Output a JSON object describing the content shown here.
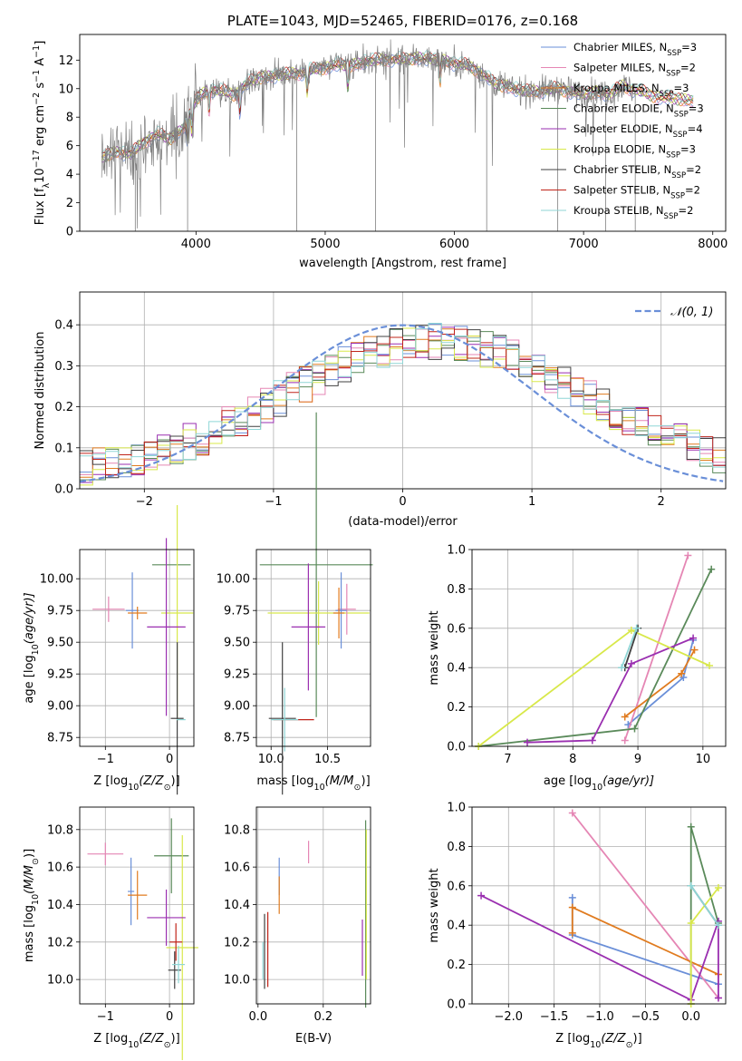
{
  "colors": {
    "Chabrier MILES": "#6a8fd8",
    "Salpeter MILES": "#e586b4",
    "Kroupa MILES": "#e07b1f",
    "Chabrier ELODIE": "#5a8a5a",
    "Salpeter ELODIE": "#9a2fb0",
    "Kroupa ELODIE": "#d8e84a",
    "Chabrier STELIB": "#404040",
    "Salpeter STELIB": "#c0241a",
    "Kroupa STELIB": "#8fd6d6",
    "grid": "#b0b0b0",
    "data": "#808080"
  },
  "chart_data": [
    {
      "id": "spectrum",
      "type": "line",
      "title": "PLATE=1043, MJD=52465, FIBERID=0176, z=0.168",
      "xlabel": "wavelength [Angstrom, rest frame]",
      "ylabel_main": "Flux [f",
      "ylabel_sub": "λ",
      "ylabel_rest": "10",
      "ylabel_exp": "−17",
      "ylabel_units": " erg cm",
      "ylabel_units_exp1": "−2",
      "ylabel_units2": " s",
      "ylabel_units_exp2": "−1",
      "ylabel_units3": " A",
      "ylabel_units_exp3": "−1",
      "ylabel_close": "]",
      "xlim": [
        3100,
        8100
      ],
      "ylim": [
        0,
        13.8
      ],
      "xticks": [
        4000,
        5000,
        6000,
        7000,
        8000
      ],
      "yticks": [
        0,
        2,
        4,
        6,
        8,
        10,
        12
      ],
      "legend_position": "upper right",
      "legend": [
        {
          "name": "Chabrier MILES",
          "label": "Chabrier MILES, N",
          "sub": "SSP",
          "tail": "=3"
        },
        {
          "name": "Salpeter MILES",
          "label": "Salpeter MILES, N",
          "sub": "SSP",
          "tail": "=2"
        },
        {
          "name": "Kroupa MILES",
          "label": "Kroupa MILES, N",
          "sub": "SSP",
          "tail": "=3"
        },
        {
          "name": "Chabrier ELODIE",
          "label": "Chabrier ELODIE, N",
          "sub": "SSP",
          "tail": "=3"
        },
        {
          "name": "Salpeter ELODIE",
          "label": "Salpeter ELODIE, N",
          "sub": "SSP",
          "tail": "=4"
        },
        {
          "name": "Kroupa ELODIE",
          "label": "Kroupa ELODIE, N",
          "sub": "SSP",
          "tail": "=3"
        },
        {
          "name": "Chabrier STELIB",
          "label": "Chabrier STELIB, N",
          "sub": "SSP",
          "tail": "=2"
        },
        {
          "name": "Salpeter STELIB",
          "label": "Salpeter STELIB, N",
          "sub": "SSP",
          "tail": "=2"
        },
        {
          "name": "Kroupa STELIB",
          "label": "Kroupa STELIB, N",
          "sub": "SSP",
          "tail": "=2"
        }
      ],
      "continuum": [
        [
          3270,
          5.2
        ],
        [
          3400,
          5.6
        ],
        [
          3500,
          5.4
        ],
        [
          3600,
          6.3
        ],
        [
          3700,
          6.8
        ],
        [
          3800,
          6.5
        ],
        [
          3900,
          7.2
        ],
        [
          3960,
          8.4
        ],
        [
          4000,
          9.2
        ],
        [
          4100,
          10.0
        ],
        [
          4200,
          9.8
        ],
        [
          4300,
          9.6
        ],
        [
          4400,
          10.4
        ],
        [
          4500,
          10.8
        ],
        [
          4600,
          10.9
        ],
        [
          4700,
          11.0
        ],
        [
          4800,
          11.1
        ],
        [
          4900,
          11.3
        ],
        [
          5000,
          11.5
        ],
        [
          5100,
          11.7
        ],
        [
          5200,
          11.6
        ],
        [
          5300,
          11.9
        ],
        [
          5400,
          12.0
        ],
        [
          5500,
          12.1
        ],
        [
          5600,
          12.0
        ],
        [
          5700,
          12.2
        ],
        [
          5800,
          12.1
        ],
        [
          5900,
          12.0
        ],
        [
          6000,
          11.8
        ],
        [
          6100,
          11.6
        ],
        [
          6200,
          11.2
        ],
        [
          6300,
          10.4
        ],
        [
          6400,
          10.2
        ],
        [
          6500,
          9.9
        ],
        [
          6600,
          9.8
        ],
        [
          6700,
          9.9
        ],
        [
          6800,
          10.0
        ],
        [
          6900,
          9.8
        ],
        [
          7000,
          9.6
        ],
        [
          7100,
          9.8
        ],
        [
          7200,
          9.6
        ],
        [
          7300,
          10.2
        ],
        [
          7400,
          9.9
        ],
        [
          7500,
          9.6
        ],
        [
          7600,
          9.4
        ],
        [
          7700,
          9.3
        ],
        [
          7800,
          9.2
        ],
        [
          7850,
          9.2
        ]
      ],
      "data_color": "#808080",
      "data_end": 7400,
      "dropouts": [
        3530,
        3935,
        4780,
        5390,
        6250,
        6800,
        7170,
        7400
      ],
      "lines_absorption": [
        3933,
        3968,
        4101,
        4340,
        4861,
        5175,
        5890
      ]
    },
    {
      "id": "residuals",
      "type": "histogram",
      "xlabel": "(data-model)/error",
      "ylabel": "Normed distribution",
      "xlim": [
        -2.5,
        2.5
      ],
      "ylim": [
        0,
        0.48
      ],
      "xticks": [
        -2,
        -1,
        0,
        1,
        2
      ],
      "yticks": [
        0.0,
        0.1,
        0.2,
        0.3,
        0.4
      ],
      "normal_label_main": "𝒩(0, 1)",
      "normal_color": "#6a8fd8",
      "legend_position": "upper right"
    },
    {
      "id": "age_vs_Z",
      "type": "scatter",
      "xlabel_main": "Z [log",
      "xlabel_sub": "10",
      "xlabel_rest": "(Z/Z",
      "xlabel_odot": "⊙",
      "xlabel_close": ")]",
      "ylabel_main": "age  [log",
      "ylabel_sub": "10",
      "ylabel_rest": "(age/yr)]",
      "xlim": [
        -1.4,
        0.38
      ],
      "ylim": [
        8.68,
        10.23
      ],
      "xticks": [
        -1,
        0
      ],
      "yticks": [
        8.75,
        9.0,
        9.25,
        9.5,
        9.75,
        10.0
      ],
      "points": [
        {
          "series": "Salpeter MILES",
          "x": -0.95,
          "y": 9.76,
          "xerr": 0.25,
          "yerr": 0.1
        },
        {
          "series": "Chabrier MILES",
          "x": -0.58,
          "y": 9.75,
          "xerr": 0.1,
          "yerr": 0.3
        },
        {
          "series": "Kroupa MILES",
          "x": -0.5,
          "y": 9.73,
          "xerr": 0.15,
          "yerr": 0.05
        },
        {
          "series": "Chabrier ELODIE",
          "x": 0.03,
          "y": 10.11,
          "xerr": 0.3,
          "yerr": 0.0
        },
        {
          "series": "Kroupa ELODIE",
          "x": 0.12,
          "y": 9.73,
          "xerr": 0.25,
          "yerr": 0.85
        },
        {
          "series": "Salpeter ELODIE",
          "x": -0.05,
          "y": 9.62,
          "xerr": 0.3,
          "yerr": 0.7
        },
        {
          "series": "Chabrier STELIB",
          "x": 0.12,
          "y": 8.9,
          "xerr": 0.1,
          "yerr": 0.6
        },
        {
          "series": "Salpeter STELIB",
          "x": 0.0,
          "y": 8.89,
          "xerr": 0.0,
          "yerr": 0.0
        },
        {
          "series": "Kroupa STELIB",
          "x": 0.18,
          "y": 8.89,
          "xerr": 0.07,
          "yerr": 0.0
        }
      ]
    },
    {
      "id": "age_vs_mass",
      "type": "scatter",
      "xlabel_main": "mass [log",
      "xlabel_sub": "10",
      "xlabel_rest": "(M/M",
      "xlabel_odot": "⊙",
      "xlabel_close": ")]",
      "xlim": [
        9.87,
        10.88
      ],
      "ylim": [
        8.68,
        10.23
      ],
      "xticks": [
        10.0,
        10.5
      ],
      "yticks": [
        8.75,
        9.0,
        9.25,
        9.5,
        9.75,
        10.0
      ],
      "points": [
        {
          "series": "Chabrier ELODIE",
          "x": 10.4,
          "y": 10.11,
          "xerr": 0.5,
          "yerr": 1.2
        },
        {
          "series": "Kroupa ELODIE",
          "x": 10.42,
          "y": 9.73,
          "xerr": 0.45,
          "yerr": 0.25
        },
        {
          "series": "Salpeter ELODIE",
          "x": 10.33,
          "y": 9.62,
          "xerr": 0.15,
          "yerr": 0.5
        },
        {
          "series": "Salpeter MILES",
          "x": 10.67,
          "y": 9.76,
          "xerr": 0.08,
          "yerr": 0.2
        },
        {
          "series": "Chabrier MILES",
          "x": 10.62,
          "y": 9.75,
          "xerr": 0.05,
          "yerr": 0.3
        },
        {
          "series": "Kroupa MILES",
          "x": 10.6,
          "y": 9.73,
          "xerr": 0.05,
          "yerr": 0.2
        },
        {
          "series": "Chabrier STELIB",
          "x": 10.1,
          "y": 8.9,
          "xerr": 0.12,
          "yerr": 0.6
        },
        {
          "series": "Salpeter STELIB",
          "x": 10.2,
          "y": 8.89,
          "xerr": 0.18,
          "yerr": 0.0
        },
        {
          "series": "Kroupa STELIB",
          "x": 10.12,
          "y": 8.89,
          "xerr": 0.12,
          "yerr": 0.25
        }
      ]
    },
    {
      "id": "weight_vs_age",
      "type": "line",
      "xlabel_main": "age  [log",
      "xlabel_sub": "10",
      "xlabel_rest": "(age/yr)]",
      "ylabel": "mass weight",
      "xlim": [
        6.45,
        10.35
      ],
      "ylim": [
        0,
        1.0
      ],
      "xticks": [
        7,
        8,
        9,
        10
      ],
      "yticks": [
        0.0,
        0.2,
        0.4,
        0.6,
        0.8,
        1.0
      ],
      "series": [
        {
          "name": "Chabrier MILES",
          "x": [
            8.85,
            9.7,
            9.85
          ],
          "y": [
            0.11,
            0.35,
            0.54
          ]
        },
        {
          "name": "Salpeter MILES",
          "x": [
            8.8,
            9.77
          ],
          "y": [
            0.03,
            0.97
          ]
        },
        {
          "name": "Kroupa MILES",
          "x": [
            8.8,
            9.67,
            9.87
          ],
          "y": [
            0.15,
            0.37,
            0.49
          ]
        },
        {
          "name": "Chabrier ELODIE",
          "x": [
            6.55,
            8.95,
            10.13
          ],
          "y": [
            0.0,
            0.09,
            0.9
          ]
        },
        {
          "name": "Salpeter ELODIE",
          "x": [
            7.3,
            8.3,
            8.9,
            9.85
          ],
          "y": [
            0.02,
            0.03,
            0.42,
            0.55
          ]
        },
        {
          "name": "Kroupa ELODIE",
          "x": [
            6.55,
            8.9,
            10.1
          ],
          "y": [
            0.0,
            0.59,
            0.41
          ]
        },
        {
          "name": "Chabrier STELIB",
          "x": [
            8.8,
            9.0
          ],
          "y": [
            0.4,
            0.6
          ]
        },
        {
          "name": "Kroupa STELIB",
          "x": [
            8.75,
            8.98
          ],
          "y": [
            0.4,
            0.6
          ]
        }
      ]
    },
    {
      "id": "mass_vs_Z",
      "type": "scatter",
      "xlabel_main": "Z [log",
      "xlabel_sub": "10",
      "xlabel_rest": "(Z/Z",
      "xlabel_odot": "⊙",
      "xlabel_close": ")]",
      "ylabel_main": "mass [log",
      "ylabel_sub": "10",
      "ylabel_rest": "(M/M",
      "ylabel_odot": "⊙",
      "ylabel_close": ")]",
      "xlim": [
        -1.4,
        0.38
      ],
      "ylim": [
        9.87,
        10.92
      ],
      "xticks": [
        -1,
        0
      ],
      "yticks": [
        10.0,
        10.2,
        10.4,
        10.6,
        10.8
      ],
      "points": [
        {
          "series": "Salpeter MILES",
          "x": -1.0,
          "y": 10.67,
          "xerr": 0.28,
          "yerr": 0.06
        },
        {
          "series": "Chabrier MILES",
          "x": -0.6,
          "y": 10.47,
          "xerr": 0.05,
          "yerr": 0.18
        },
        {
          "series": "Kroupa MILES",
          "x": -0.5,
          "y": 10.45,
          "xerr": 0.15,
          "yerr": 0.13
        },
        {
          "series": "Chabrier ELODIE",
          "x": 0.03,
          "y": 10.66,
          "xerr": 0.27,
          "yerr": 0.2
        },
        {
          "series": "Kroupa ELODIE",
          "x": 0.2,
          "y": 10.17,
          "xerr": 0.25,
          "yerr": 0.6
        },
        {
          "series": "Salpeter ELODIE",
          "x": -0.05,
          "y": 10.33,
          "xerr": 0.3,
          "yerr": 0.15
        },
        {
          "series": "Chabrier STELIB",
          "x": 0.08,
          "y": 10.05,
          "xerr": 0.1,
          "yerr": 0.1
        },
        {
          "series": "Salpeter STELIB",
          "x": 0.1,
          "y": 10.2,
          "xerr": 0.1,
          "yerr": 0.1
        },
        {
          "series": "Kroupa STELIB",
          "x": 0.14,
          "y": 10.08,
          "xerr": 0.1,
          "yerr": 0.1
        }
      ]
    },
    {
      "id": "mass_vs_ebv",
      "type": "scatter",
      "xlabel": "E(B-V)",
      "xlim": [
        -0.005,
        0.345
      ],
      "ylim": [
        9.87,
        10.92
      ],
      "xticks": [
        0.0,
        0.2
      ],
      "yticks": [
        10.0,
        10.2,
        10.4,
        10.6,
        10.8
      ],
      "points": [
        {
          "series": "Chabrier STELIB",
          "x": 0.02,
          "y": 10.15,
          "xerr": 0,
          "yerr": 0.2
        },
        {
          "series": "Salpeter STELIB",
          "x": 0.03,
          "y": 10.16,
          "xerr": 0,
          "yerr": 0.2
        },
        {
          "series": "Kroupa STELIB",
          "x": 0.015,
          "y": 10.1,
          "xerr": 0,
          "yerr": 0.1
        },
        {
          "series": "Chabrier MILES",
          "x": 0.065,
          "y": 10.55,
          "xerr": 0,
          "yerr": 0.1
        },
        {
          "series": "Kroupa MILES",
          "x": 0.065,
          "y": 10.45,
          "xerr": 0,
          "yerr": 0.1
        },
        {
          "series": "Salpeter MILES",
          "x": 0.155,
          "y": 10.68,
          "xerr": 0,
          "yerr": 0.06
        },
        {
          "series": "Salpeter ELODIE",
          "x": 0.32,
          "y": 10.17,
          "xerr": 0,
          "yerr": 0.15
        },
        {
          "series": "Chabrier ELODIE",
          "x": 0.33,
          "y": 10.35,
          "xerr": 0,
          "yerr": 0.5
        },
        {
          "series": "Kroupa ELODIE",
          "x": 0.332,
          "y": 10.4,
          "xerr": 0,
          "yerr": 0.4
        }
      ]
    },
    {
      "id": "weight_vs_Z",
      "type": "line",
      "xlabel_main": "Z [log",
      "xlabel_sub": "10",
      "xlabel_rest": "(Z/Z",
      "xlabel_odot": "⊙",
      "xlabel_close": ")]",
      "ylabel": "mass weight",
      "xlim": [
        -2.4,
        0.38
      ],
      "ylim": [
        0,
        1.0
      ],
      "xticks": [
        -2.0,
        -1.5,
        -1.0,
        -0.5,
        0.0
      ],
      "yticks": [
        0.0,
        0.2,
        0.4,
        0.6,
        0.8,
        1.0
      ],
      "series": [
        {
          "name": "Chabrier MILES",
          "x": [
            -1.3,
            -1.3,
            0.3
          ],
          "y": [
            0.54,
            0.35,
            0.1
          ]
        },
        {
          "name": "Salpeter MILES",
          "x": [
            -1.3,
            0.3
          ],
          "y": [
            0.97,
            0.03
          ]
        },
        {
          "name": "Kroupa MILES",
          "x": [
            -1.3,
            -1.3,
            0.3
          ],
          "y": [
            0.36,
            0.49,
            0.15
          ]
        },
        {
          "name": "Chabrier ELODIE",
          "x": [
            0.0,
            0.0,
            0.3
          ],
          "y": [
            0.0,
            0.9,
            0.41
          ]
        },
        {
          "name": "Salpeter ELODIE",
          "x": [
            -2.3,
            0.0,
            0.3,
            0.3
          ],
          "y": [
            0.55,
            0.02,
            0.42,
            0.03
          ]
        },
        {
          "name": "Kroupa ELODIE",
          "x": [
            0.0,
            0.0,
            0.3
          ],
          "y": [
            0.0,
            0.41,
            0.59
          ]
        },
        {
          "name": "Chabrier STELIB",
          "x": [
            0.0,
            0.3
          ],
          "y": [
            0.6,
            0.4
          ]
        },
        {
          "name": "Kroupa STELIB",
          "x": [
            0.0,
            0.3
          ],
          "y": [
            0.6,
            0.4
          ]
        }
      ]
    }
  ]
}
